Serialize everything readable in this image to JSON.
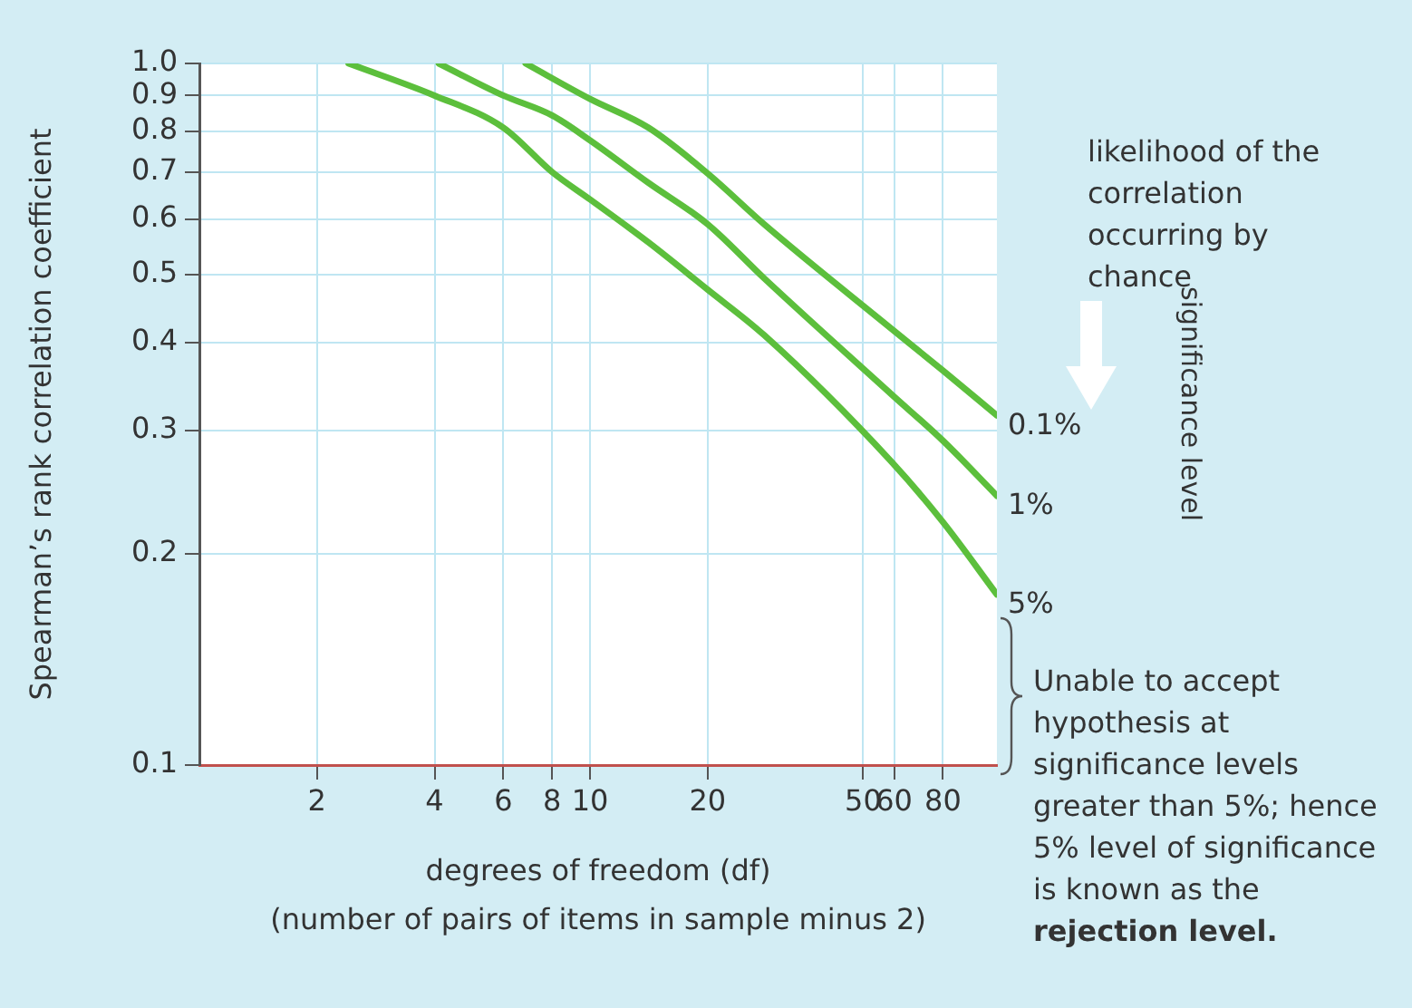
{
  "chart_data": {
    "type": "line",
    "xlabel": "degrees of freedom (df)\n(number of pairs of items in sample minus 2)",
    "ylabel": "Spearman’s rank correlation coefficient",
    "log": "xy",
    "xlim": [
      1,
      110
    ],
    "xticks": [
      2,
      4,
      6,
      8,
      10,
      20,
      50,
      60,
      80
    ],
    "ylim": [
      0.1,
      1
    ],
    "yticks": [
      0.1,
      0.2,
      0.3,
      0.4,
      0.5,
      0.6,
      0.7,
      0.8,
      0.9,
      {
        "value": 1,
        "label": "1.0"
      }
    ],
    "grid": true,
    "legend": false,
    "marker": "none",
    "line_style": "solid",
    "series": [
      {
        "name": "0.1%",
        "color": "#5cbf3c",
        "x": [
          6.84,
          10,
          14.1,
          20,
          27.9,
          59.3,
          80,
          110
        ],
        "values": [
          1,
          0.89,
          0.81,
          0.697,
          0.59,
          0.418,
          0.365,
          0.315
        ]
      },
      {
        "name": "1%",
        "color": "#5cbf3c",
        "x": [
          4.1,
          6,
          8,
          10,
          14.1,
          20,
          27.9,
          59.3,
          80,
          110
        ],
        "values": [
          1,
          0.9,
          0.843,
          0.777,
          0.676,
          0.59,
          0.494,
          0.337,
          0.29,
          0.242
        ]
      },
      {
        "name": "5%",
        "color": "#5cbf3c",
        "x": [
          2.41,
          4,
          6,
          8,
          10,
          14.1,
          20,
          27.9,
          59.3,
          80,
          110
        ],
        "values": [
          1,
          0.9,
          0.81,
          0.7,
          0.64,
          0.556,
          0.476,
          0.41,
          0.27,
          0.222,
          0.175
        ]
      }
    ],
    "annotations": [
      "likelihood of the correlation occurring by chance",
      "significance level",
      "Unable to accept hypothesis at significance levels greater than 5%; hence 5% level of significance is known as the",
      "rejection level."
    ]
  }
}
